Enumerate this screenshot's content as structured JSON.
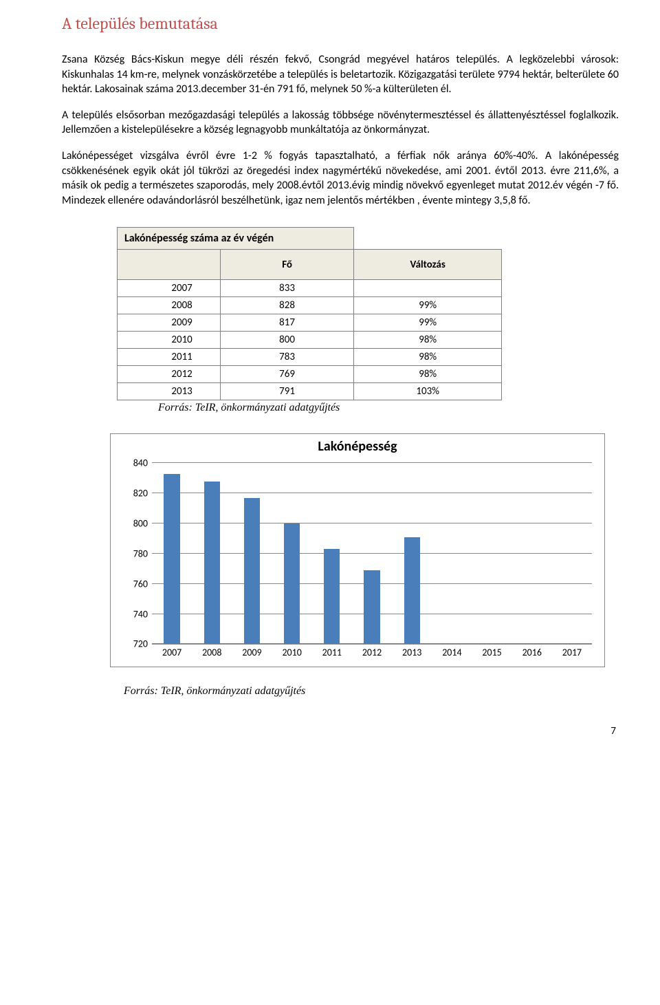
{
  "section_title": "A település bemutatása",
  "section_title_color": "#c0504d",
  "paragraphs": [
    "Zsana Község Bács-Kiskun megye déli részén fekvő, Csongrád megyével határos település. A legközelebbi városok: Kiskunhalas 14 km-re, melynek vonzáskörzetébe a település is beletartozik. Közigazgatási területe 9794 hektár, belterülete 60 hektár. Lakosainak száma 2013.december 31-én 791 fő, melynek 50 %-a külterületen él.",
    "A település elsősorban mezőgazdasági település a lakosság többsége növénytermesztéssel és állattenyésztéssel foglalkozik. Jellemzően a kistelepülésekre a község legnagyobb munkáltatója az önkormányzat.",
    "Lakónépességet vizsgálva évről évre 1-2 % fogyás tapasztalható, a férfiak nők aránya 60%-40%. A lakónépesség csökkenésének egyik okát jól tükrözi az öregedési index nagymértékű növekedése, ami 2001. évtől 2013. évre 211,6%, a másik ok pedig a természetes szaporodás, mely 2008.évtől 2013.évig mindig növekvő egyenleget mutat 2012.év végén -7 fő. Mindezek ellenére odavándorlásról beszélhetünk, igaz nem jelentős mértékben , évente mintegy 3,5,8 fő."
  ],
  "table": {
    "title": "Lakónépesség száma az év végén",
    "header_fo": "Fő",
    "header_valtozas": "Változás",
    "header_bg": "#eeece1",
    "border_color": "#808080",
    "rows": [
      {
        "year": "2007",
        "fo": "833",
        "valtozas": ""
      },
      {
        "year": "2008",
        "fo": "828",
        "valtozas": "99%"
      },
      {
        "year": "2009",
        "fo": "817",
        "valtozas": "99%"
      },
      {
        "year": "2010",
        "fo": "800",
        "valtozas": "98%"
      },
      {
        "year": "2011",
        "fo": "783",
        "valtozas": "98%"
      },
      {
        "year": "2012",
        "fo": "769",
        "valtozas": "98%"
      },
      {
        "year": "2013",
        "fo": "791",
        "valtozas": "103%"
      }
    ],
    "source": "Forrás: TeIR, önkormányzati adatgyűjtés"
  },
  "chart": {
    "type": "bar",
    "title": "Lakónépesség",
    "title_fontsize": 20,
    "categories": [
      "2007",
      "2008",
      "2009",
      "2010",
      "2011",
      "2012",
      "2013",
      "2014",
      "2015",
      "2016",
      "2017"
    ],
    "values": [
      833,
      828,
      817,
      800,
      783,
      769,
      791,
      null,
      null,
      null,
      null
    ],
    "bar_color": "#4a7ebb",
    "ylim": [
      720,
      840
    ],
    "ytick_step": 20,
    "yticks": [
      720,
      740,
      760,
      780,
      800,
      820,
      840
    ],
    "grid_color": "#888888",
    "background_color": "#ffffff",
    "label_fontsize": 14,
    "bar_width": 0.4,
    "source": "Forrás: TeIR, önkormányzati adatgyűjtés"
  },
  "page_number": "7"
}
